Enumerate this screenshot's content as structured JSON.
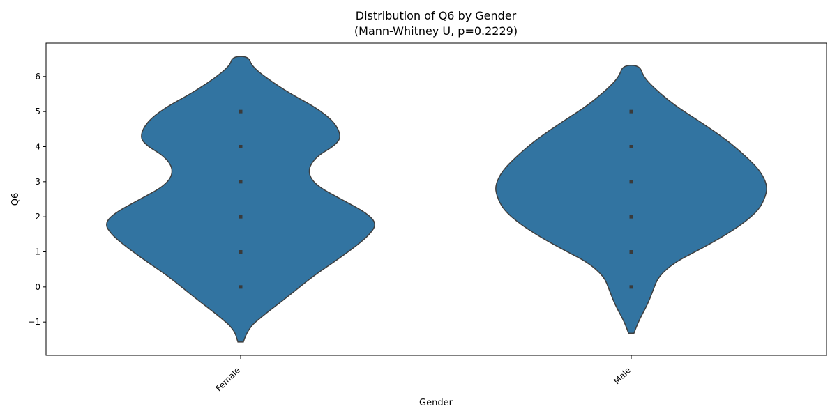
{
  "chart_data": {
    "type": "violin",
    "title": "Distribution of Q6 by Gender",
    "subtitle": "(Mann-Whitney U, p=0.2229)",
    "xlabel": "Gender",
    "ylabel": "Q6",
    "categories": [
      "Female",
      "Male"
    ],
    "ylim": [
      -1.95,
      6.95
    ],
    "yticks": [
      -1,
      0,
      1,
      2,
      3,
      4,
      5,
      6
    ],
    "ytick_labels": [
      "−1",
      "0",
      "1",
      "2",
      "3",
      "4",
      "5",
      "6"
    ],
    "grid": false,
    "legend": "none",
    "fill_color": "#3274a1",
    "edge_color": "#3f3f3f",
    "series": [
      {
        "category": "Female",
        "points": [
          0,
          1,
          2,
          3,
          4,
          5
        ],
        "y_range": [
          -1.57,
          6.57
        ],
        "density_profile": [
          {
            "y": -1.57,
            "w": 0.02
          },
          {
            "y": -1.2,
            "w": 0.05
          },
          {
            "y": -0.8,
            "w": 0.17
          },
          {
            "y": -0.3,
            "w": 0.34
          },
          {
            "y": 0.3,
            "w": 0.53
          },
          {
            "y": 0.8,
            "w": 0.72
          },
          {
            "y": 1.2,
            "w": 0.86
          },
          {
            "y": 1.5,
            "w": 0.95
          },
          {
            "y": 1.8,
            "w": 1.0
          },
          {
            "y": 2.1,
            "w": 0.93
          },
          {
            "y": 2.5,
            "w": 0.74
          },
          {
            "y": 2.9,
            "w": 0.55
          },
          {
            "y": 3.3,
            "w": 0.49
          },
          {
            "y": 3.7,
            "w": 0.55
          },
          {
            "y": 4.05,
            "w": 0.7
          },
          {
            "y": 4.3,
            "w": 0.74
          },
          {
            "y": 4.7,
            "w": 0.69
          },
          {
            "y": 5.1,
            "w": 0.56
          },
          {
            "y": 5.5,
            "w": 0.37
          },
          {
            "y": 5.9,
            "w": 0.21
          },
          {
            "y": 6.3,
            "w": 0.08
          },
          {
            "y": 6.57,
            "w": 0.06
          }
        ]
      },
      {
        "category": "Male",
        "points": [
          0,
          1,
          2,
          3,
          4,
          5
        ],
        "y_range": [
          -1.32,
          6.32
        ],
        "density_profile": [
          {
            "y": -1.32,
            "w": 0.02
          },
          {
            "y": -1.0,
            "w": 0.05
          },
          {
            "y": -0.5,
            "w": 0.12
          },
          {
            "y": -0.1,
            "w": 0.16
          },
          {
            "y": 0.3,
            "w": 0.2
          },
          {
            "y": 0.7,
            "w": 0.32
          },
          {
            "y": 1.0,
            "w": 0.47
          },
          {
            "y": 1.4,
            "w": 0.66
          },
          {
            "y": 1.8,
            "w": 0.82
          },
          {
            "y": 2.2,
            "w": 0.94
          },
          {
            "y": 2.6,
            "w": 0.99
          },
          {
            "y": 2.9,
            "w": 1.0
          },
          {
            "y": 3.3,
            "w": 0.95
          },
          {
            "y": 3.7,
            "w": 0.85
          },
          {
            "y": 4.2,
            "w": 0.7
          },
          {
            "y": 4.7,
            "w": 0.51
          },
          {
            "y": 5.2,
            "w": 0.31
          },
          {
            "y": 5.7,
            "w": 0.16
          },
          {
            "y": 6.0,
            "w": 0.09
          },
          {
            "y": 6.32,
            "w": 0.06
          }
        ]
      }
    ]
  }
}
